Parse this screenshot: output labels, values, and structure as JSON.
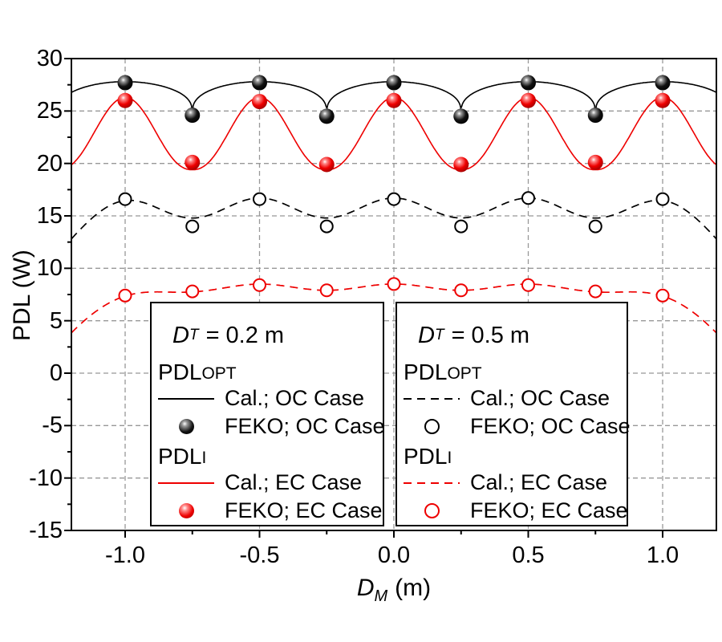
{
  "colors": {
    "black": "#000000",
    "red": "#ee0000",
    "grid": "#989898",
    "background": "#ffffff"
  },
  "marker_gradients": {
    "black": {
      "highlight": "#ffffff",
      "mid": "#9a9a9a",
      "main": "#111111",
      "edge": "#000000"
    },
    "red": {
      "highlight": "#ffffff",
      "mid": "#ff8a8a",
      "main": "#ee0000",
      "edge": "#990000"
    }
  },
  "axes": {
    "x": {
      "title_var": "D",
      "title_sub": "M",
      "title_rest": "(m)",
      "tick_labels": [
        "-1.0",
        "-0.5",
        "0.0",
        "0.5",
        "1.0"
      ],
      "tick_values": [
        -1.0,
        -0.5,
        0.0,
        0.5,
        1.0
      ],
      "minor_tick_values": [
        -0.75,
        -0.25,
        0.25,
        0.75
      ],
      "range": [
        -1.2,
        1.2
      ]
    },
    "y": {
      "title": "PDL (W)",
      "tick_labels": [
        "30",
        "25",
        "20",
        "15",
        "10",
        "5",
        "0",
        "-5",
        "-10",
        "-15"
      ],
      "tick_values": [
        30,
        25,
        20,
        15,
        10,
        5,
        0,
        -5,
        -10,
        -15
      ],
      "minor_tick_values": [
        27.5,
        22.5,
        17.5,
        12.5,
        7.5,
        2.5,
        -2.5,
        -7.5,
        -12.5
      ],
      "range": [
        -15,
        30
      ]
    }
  },
  "legend_left": {
    "title_var": "D",
    "title_sub": "T",
    "title_rest": "= 0.2 m",
    "h1_main": "PDL",
    "h1_small": "OPT",
    "e1_label": "Cal.; OC Case",
    "e2_label": "FEKO; OC Case",
    "h2_main": "PDL",
    "h2_small": "I",
    "e3_label": "Cal.; EC Case",
    "e4_label": "FEKO; EC Case"
  },
  "legend_right": {
    "title_var": "D",
    "title_sub": "T",
    "title_rest": "= 0.5 m",
    "h1_main": "PDL",
    "h1_small": "OPT",
    "e1_label": "Cal.; OC Case",
    "e2_label": "FEKO; OC Case",
    "h2_main": "PDL",
    "h2_small": "I",
    "e3_label": "Cal.; EC Case",
    "e4_label": "FEKO; EC Case"
  },
  "chart_data": {
    "type": "line",
    "title": "",
    "xlabel": "D_M (m)",
    "ylabel": "PDL (W)",
    "xlim": [
      -1.2,
      1.2
    ],
    "ylim": [
      -15,
      30
    ],
    "grid": {
      "on": true,
      "x_lines": [
        -1.0,
        -0.5,
        0.0,
        0.5,
        1.0
      ],
      "y_lines": [
        25,
        20,
        15,
        10,
        5,
        0,
        -5,
        -10
      ]
    },
    "legend_position": "two boxes, lower center",
    "series": [
      {
        "name": "PDL_OPT Cal.; OC Case (D_T = 0.2 m)",
        "render": "curve",
        "line": "solid",
        "color": "black",
        "curve_model": {
          "kind": "cosine_cusp",
          "base": 24.75,
          "amp": 3.05,
          "exponent": 0.35,
          "period": 0.5
        },
        "peak_x": [
          -1.0,
          -0.5,
          0.0,
          0.5,
          1.0
        ],
        "peak_y": 27.8,
        "dip_x": [
          -0.75,
          -0.25,
          0.25,
          0.75
        ],
        "dip_y": 24.75
      },
      {
        "name": "PDL_OPT FEKO; OC Case (D_T = 0.2 m)",
        "render": "markers",
        "marker": "sphere",
        "color": "black",
        "x": [
          -1.0,
          -0.75,
          -0.5,
          -0.25,
          0.0,
          0.25,
          0.5,
          0.75,
          1.0
        ],
        "y": [
          27.7,
          24.6,
          27.7,
          24.5,
          27.7,
          24.5,
          27.7,
          24.6,
          27.7
        ]
      },
      {
        "name": "PDL_I Cal.; EC Case (D_T = 0.2 m)",
        "render": "curve",
        "line": "solid",
        "color": "red",
        "curve_model": {
          "kind": "cosine_cusp",
          "base": 19.4,
          "amp": 6.9,
          "exponent": 2.3,
          "period": 0.5
        },
        "peak_x": [
          -1.0,
          -0.5,
          0.0,
          0.5,
          1.0
        ],
        "peak_y": 26.3,
        "dip_x": [
          -0.75,
          -0.25,
          0.25,
          0.75
        ],
        "dip_y": 19.4
      },
      {
        "name": "PDL_I FEKO; EC Case (D_T = 0.2 m)",
        "render": "markers",
        "marker": "sphere",
        "color": "red",
        "x": [
          -1.0,
          -0.75,
          -0.5,
          -0.25,
          0.0,
          0.25,
          0.5,
          0.75,
          1.0
        ],
        "y": [
          26.0,
          20.1,
          25.9,
          19.9,
          26.0,
          19.9,
          26.0,
          20.1,
          26.0
        ]
      },
      {
        "name": "PDL_OPT Cal.; OC Case (D_T = 0.5 m)",
        "render": "curve",
        "line": "dashed",
        "color": "black",
        "curve_model": {
          "kind": "dome_ripple",
          "base": 15.75,
          "fall": 0.245,
          "fall_pow": 12,
          "ripple_amp": 0.95,
          "period": 0.5
        },
        "peak_y": 16.7,
        "dip_y": 14.8,
        "edge_y": 12.8
      },
      {
        "name": "PDL_OPT FEKO; OC Case (D_T = 0.5 m)",
        "render": "markers",
        "marker": "open-circle",
        "color": "black",
        "x": [
          -1.0,
          -0.75,
          -0.5,
          -0.25,
          0.0,
          0.25,
          0.5,
          0.75,
          1.0
        ],
        "y": [
          16.6,
          14.0,
          16.6,
          14.0,
          16.6,
          14.0,
          16.7,
          14.0,
          16.6
        ]
      },
      {
        "name": "PDL_I Cal.; EC Case (D_T = 0.5 m)",
        "render": "curve",
        "line": "dashed",
        "color": "red",
        "curve_model": {
          "kind": "dome_ripple",
          "base": 8.2,
          "fall": 1.15,
          "fall_pow": 7,
          "ripple_amp": 0.3,
          "period": 0.5
        },
        "peak_y": 8.5,
        "edge_y": 3.8
      },
      {
        "name": "PDL_I FEKO; EC Case (D_T = 0.5 m)",
        "render": "markers",
        "marker": "open-circle",
        "color": "red",
        "x": [
          -1.0,
          -0.75,
          -0.5,
          -0.25,
          0.0,
          0.25,
          0.5,
          0.75,
          1.0
        ],
        "y": [
          7.4,
          7.8,
          8.4,
          7.9,
          8.5,
          7.9,
          8.4,
          7.8,
          7.4
        ]
      }
    ]
  }
}
